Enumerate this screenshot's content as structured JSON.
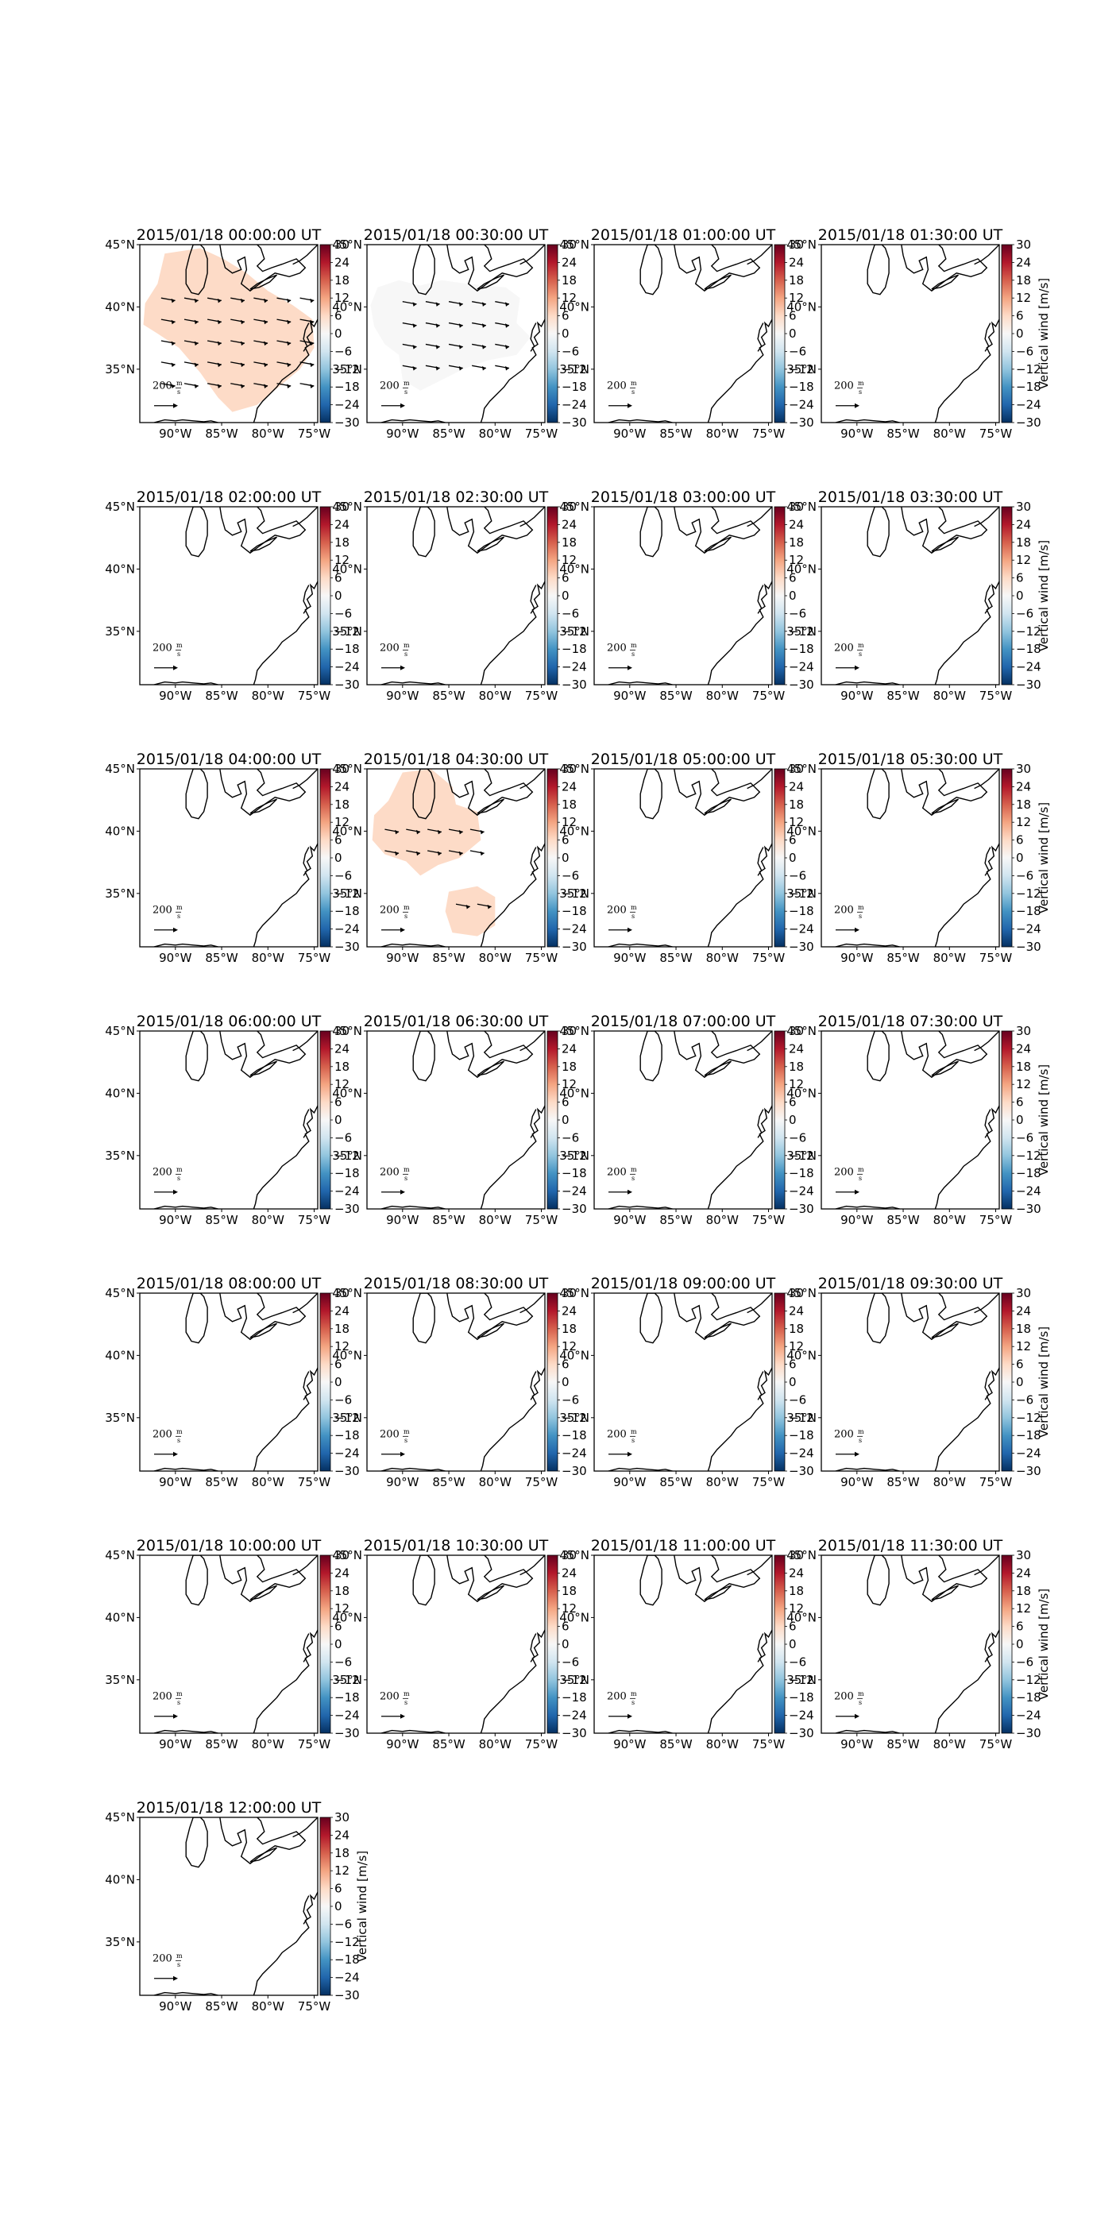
{
  "figure": {
    "colorbar_label": "Vertical wind [m/s]",
    "colorbar_ticks": [
      "30",
      "24",
      "18",
      "12",
      "6",
      "0",
      "−6",
      "−12",
      "−18",
      "−24",
      "−30"
    ],
    "lat_ticks": [
      "45°N",
      "40°N",
      "35°N"
    ],
    "lon_ticks": [
      "90°W",
      "85°W",
      "80°W",
      "75°W"
    ],
    "quiver_key": {
      "value": "200",
      "unit_top": "m",
      "unit_bottom": "s"
    }
  },
  "chart_data": {
    "type": "heatmap",
    "panels": [
      {
        "title": "2015/01/18 00:00:00 UT",
        "vertical_wind": 7
      },
      {
        "title": "2015/01/18 00:30:00 UT",
        "vertical_wind": 2
      },
      {
        "title": "2015/01/18 01:00:00 UT"
      },
      {
        "title": "2015/01/18 01:30:00 UT"
      },
      {
        "title": "2015/01/18 02:00:00 UT"
      },
      {
        "title": "2015/01/18 02:30:00 UT"
      },
      {
        "title": "2015/01/18 03:00:00 UT"
      },
      {
        "title": "2015/01/18 03:30:00 UT"
      },
      {
        "title": "2015/01/18 04:00:00 UT"
      },
      {
        "title": "2015/01/18 04:30:00 UT",
        "vertical_wind": 6
      },
      {
        "title": "2015/01/18 05:00:00 UT"
      },
      {
        "title": "2015/01/18 05:30:00 UT"
      },
      {
        "title": "2015/01/18 06:00:00 UT"
      },
      {
        "title": "2015/01/18 06:30:00 UT"
      },
      {
        "title": "2015/01/18 07:00:00 UT"
      },
      {
        "title": "2015/01/18 07:30:00 UT"
      },
      {
        "title": "2015/01/18 08:00:00 UT"
      },
      {
        "title": "2015/01/18 08:30:00 UT"
      },
      {
        "title": "2015/01/18 09:00:00 UT"
      },
      {
        "title": "2015/01/18 09:30:00 UT"
      },
      {
        "title": "2015/01/18 10:00:00 UT"
      },
      {
        "title": "2015/01/18 10:30:00 UT"
      },
      {
        "title": "2015/01/18 11:00:00 UT"
      },
      {
        "title": "2015/01/18 11:30:00 UT"
      },
      {
        "title": "2015/01/18 12:00:00 UT"
      }
    ]
  },
  "colors": {
    "cmap": [
      "#67001f",
      "#b2182b",
      "#d6604d",
      "#f4a582",
      "#fddbc7",
      "#f7f7f7",
      "#d1e5f0",
      "#92c5de",
      "#4393c3",
      "#2166ac",
      "#053061"
    ]
  }
}
